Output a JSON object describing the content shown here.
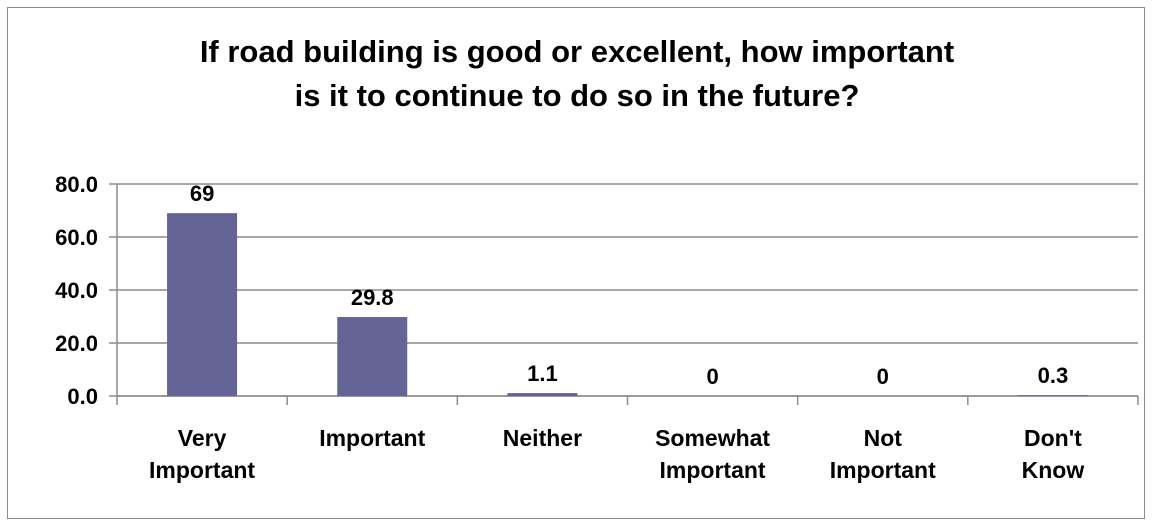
{
  "chart_data": {
    "type": "bar",
    "title_lines": [
      "If road building is good or excellent, how important",
      "is it to continue to do so in the future?"
    ],
    "categories": [
      [
        "Very",
        "Important"
      ],
      [
        "Important"
      ],
      [
        "Neither"
      ],
      [
        "Somewhat",
        "Important"
      ],
      [
        "Not",
        "Important"
      ],
      [
        "Don't",
        "Know"
      ]
    ],
    "values": [
      69,
      29.8,
      1.1,
      0,
      0,
      0.3
    ],
    "data_labels": [
      "69",
      "29.8",
      "1.1",
      "0",
      "0",
      "0.3"
    ],
    "y_ticks": [
      "0.0",
      "20.0",
      "40.0",
      "60.0",
      "80.0"
    ],
    "ylim": [
      0,
      80
    ],
    "grid": true,
    "legend": "none",
    "bar_color": "#646497",
    "xlabel": "",
    "ylabel": ""
  }
}
